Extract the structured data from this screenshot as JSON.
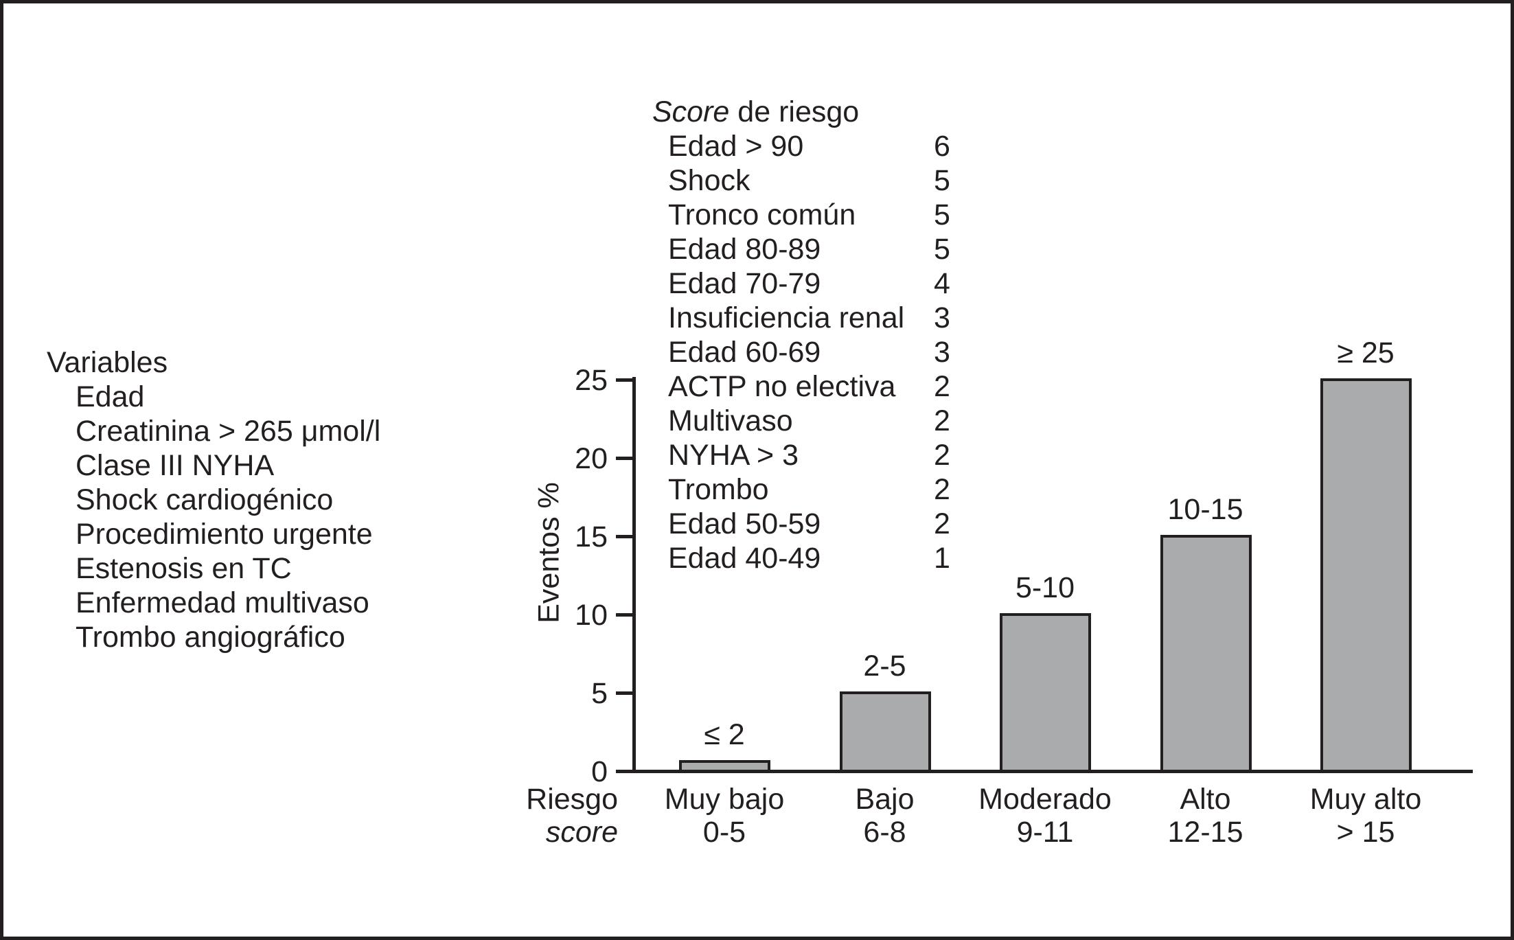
{
  "variables_panel": {
    "heading": "Variables",
    "items": [
      "Edad",
      "Creatinina > 265 μmol/l",
      "Clase III NYHA",
      "Shock cardiogénico",
      "Procedimiento urgente",
      "Estenosis en TC",
      "Enfermedad multivaso",
      "Trombo angiográfico"
    ]
  },
  "score_panel": {
    "title_italic": "Score",
    "title_rest": " de riesgo",
    "items": [
      {
        "label": "Edad > 90",
        "points": "6"
      },
      {
        "label": "Shock",
        "points": "5"
      },
      {
        "label": "Tronco común",
        "points": "5"
      },
      {
        "label": "Edad 80-89",
        "points": "5"
      },
      {
        "label": "Edad 70-79",
        "points": "4"
      },
      {
        "label": "Insuficiencia renal",
        "points": "3"
      },
      {
        "label": "Edad 60-69",
        "points": "3"
      },
      {
        "label": "ACTP no electiva",
        "points": "2"
      },
      {
        "label": "Multivaso",
        "points": "2"
      },
      {
        "label": "NYHA > 3",
        "points": "2"
      },
      {
        "label": "Trombo",
        "points": "2"
      },
      {
        "label": "Edad 50-59",
        "points": "2"
      },
      {
        "label": "Edad 40-49",
        "points": "1"
      }
    ]
  },
  "chart_data": {
    "type": "bar",
    "title": "",
    "ylabel": "Eventos %",
    "xlabel_line1": "Riesgo",
    "xlabel_line2": "score",
    "ylim": [
      0,
      25
    ],
    "yticks": [
      25,
      20,
      15,
      10,
      5,
      0
    ],
    "grid": false,
    "legend": "none",
    "bar_color": "#a9abac",
    "bar_border_color": "#231f20",
    "categories": [
      {
        "name": "Muy bajo",
        "range": "0-5"
      },
      {
        "name": "Bajo",
        "range": "6-8"
      },
      {
        "name": "Moderado",
        "range": "9-11"
      },
      {
        "name": "Alto",
        "range": "12-15"
      },
      {
        "name": "Muy alto",
        "range": "> 15"
      }
    ],
    "values": [
      0.6,
      5,
      10,
      15,
      25
    ],
    "bar_labels": [
      "≤ 2",
      "2-5",
      "5-10",
      "10-15",
      "≥ 25"
    ]
  }
}
